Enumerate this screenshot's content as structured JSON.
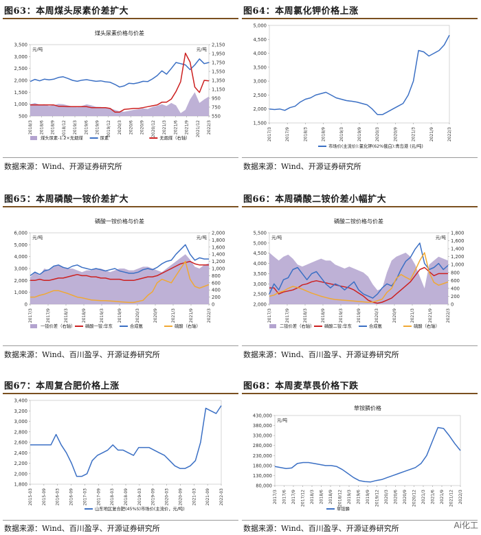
{
  "panels": [
    {
      "figure_title": "图63：本周煤头尿素价差扩大",
      "source": "数据来源：Wind、开源证券研究所",
      "chart_data": {
        "type": "line",
        "title": "煤头尿素价格与价差",
        "left_unit": "元/吨",
        "right_unit": "元/吨",
        "ylim": [
          500,
          3500
        ],
        "y_ticks": [
          500,
          1000,
          1500,
          2000,
          2500,
          3000,
          3500
        ],
        "y_tick_labels": [
          "500",
          "1,000",
          "1,500",
          "2,000",
          "2,500",
          "3,000",
          "3,500"
        ],
        "y2lim": [
          550,
          2150
        ],
        "y2_ticks": [
          550,
          750,
          950,
          1150,
          1350,
          1550,
          1750,
          1950,
          2150
        ],
        "x_tick_labels": [
          "2018/3",
          "2018/6",
          "2018/9",
          "2018/12",
          "2019/3",
          "2019/6",
          "2019/9",
          "2019/12",
          "2020/3",
          "2020/6",
          "2020/9",
          "2020/12",
          "2021/3",
          "2021/6",
          "2021/9",
          "2021/12",
          "2022/3"
        ],
        "series": [
          {
            "name": "煤头尿素-1.2×无烟煤",
            "type": "area",
            "axis": "left",
            "color": "#b3a3cf",
            "values": [
              1000,
              1050,
              980,
              1000,
              920,
              960,
              1010,
              1000,
              950,
              900,
              870,
              930,
              990,
              950,
              890,
              880,
              850,
              830,
              760,
              700,
              680,
              720,
              760,
              780,
              820,
              800,
              880,
              930,
              1000,
              920,
              1050,
              950,
              620,
              760,
              1200,
              1500,
              1050,
              1200,
              1320
            ]
          },
          {
            "name": "尿素",
            "type": "line",
            "axis": "left",
            "color": "#3a6fc4",
            "values": [
              1950,
              2040,
              1980,
              2050,
              2020,
              2050,
              2120,
              2150,
              2080,
              2000,
              1960,
              2010,
              2030,
              1990,
              1960,
              1980,
              1940,
              1920,
              1830,
              1720,
              1770,
              1880,
              1860,
              1900,
              1960,
              1950,
              2060,
              2200,
              2400,
              2260,
              2500,
              2750,
              2700,
              2650,
              2450,
              2650,
              2900,
              2700,
              2750
            ]
          },
          {
            "name": "无烟煤（右轴）",
            "type": "line",
            "axis": "right",
            "color": "#cc1f1f",
            "values": [
              800,
              800,
              800,
              800,
              800,
              800,
              770,
              770,
              760,
              760,
              760,
              760,
              760,
              740,
              740,
              740,
              740,
              720,
              640,
              640,
              700,
              710,
              720,
              720,
              740,
              760,
              780,
              800,
              860,
              860,
              930,
              1100,
              1320,
              1960,
              1760,
              1200,
              1080,
              1350,
              1340
            ]
          }
        ]
      }
    },
    {
      "figure_title": "图64：本周氯化钾价格上涨",
      "source": "数据来源：Wind、开源证券研究所",
      "chart_data": {
        "type": "line",
        "ylim": [
          1500,
          5000
        ],
        "y_ticks": [
          1500,
          2000,
          2500,
          3000,
          3500,
          4000,
          4500,
          5000
        ],
        "y_tick_labels": [
          "1,500",
          "2,000",
          "2,500",
          "3,000",
          "3,500",
          "4,000",
          "4,500",
          "5,000"
        ],
        "x_tick_labels": [
          "2017/3",
          "2017/9",
          "2018/3",
          "2018/9",
          "2019/3",
          "2019/9",
          "2020/3",
          "2020/9",
          "2021/3",
          "2021/9",
          "2022/3"
        ],
        "series": [
          {
            "name": "市场价(主流价):氯化钾(62%俄白):青岛港 (元/吨)",
            "type": "line",
            "axis": "left",
            "color": "#3a6fc4",
            "values": [
              2000,
              1980,
              2000,
              1950,
              2050,
              2100,
              2250,
              2350,
              2400,
              2500,
              2550,
              2600,
              2500,
              2400,
              2350,
              2300,
              2280,
              2250,
              2200,
              2150,
              2000,
              1800,
              1800,
              1900,
              2000,
              2100,
              2200,
              2500,
              3000,
              4100,
              4050,
              3900,
              4000,
              4100,
              4300,
              4650
            ]
          }
        ]
      }
    },
    {
      "figure_title": "图65：本周磷酸一铵价差扩大",
      "source": "数据来源：Wind、百川盈孚、开源证券研究所",
      "chart_data": {
        "type": "line",
        "title": "磷酸一铵价格与价差",
        "left_unit": "元/吨",
        "right_unit": "元/吨",
        "ylim": [
          0,
          6000
        ],
        "y_ticks": [
          0,
          1000,
          2000,
          3000,
          4000,
          5000,
          6000
        ],
        "y_tick_labels": [
          "0",
          "1,000",
          "2,000",
          "3,000",
          "4,000",
          "5,000",
          "6,000"
        ],
        "y2lim": [
          0,
          2000
        ],
        "y2_ticks": [
          0,
          200,
          400,
          600,
          800,
          1000,
          1200,
          1400,
          1600,
          1800,
          2000
        ],
        "x_tick_labels": [
          "2017/3",
          "2017/9",
          "2018/3",
          "2018/9",
          "2019/3",
          "2019/9",
          "2020/3",
          "2020/9",
          "2021/3",
          "2021/9",
          "2022/3"
        ],
        "series": [
          {
            "name": "一铵价差（右轴）",
            "type": "area",
            "axis": "right",
            "color": "#b3a3cf",
            "values": [
              750,
              900,
              800,
              1000,
              950,
              1050,
              1100,
              1050,
              1000,
              1000,
              950,
              900,
              950,
              950,
              1000,
              1000,
              950,
              900,
              950,
              1000,
              1000,
              950,
              950,
              1000,
              1050,
              1050,
              1000,
              950,
              900,
              1000,
              1100,
              1200,
              1300,
              1400,
              1250,
              1050,
              1000,
              1100,
              1150
            ]
          },
          {
            "name": "磷酸一铵:华东",
            "type": "line",
            "axis": "left",
            "color": "#cc1f1f",
            "values": [
              2000,
              2000,
              2100,
              2000,
              2000,
              2100,
              2200,
              2200,
              2300,
              2400,
              2500,
              2400,
              2400,
              2300,
              2300,
              2200,
              2200,
              2100,
              2100,
              2100,
              2000,
              2000,
              2000,
              2100,
              2200,
              2300,
              2300,
              2400,
              2600,
              2800,
              3000,
              3200,
              3400,
              3500,
              3600,
              3400,
              3300,
              3300,
              3300
            ]
          },
          {
            "name": "合成氨",
            "type": "line",
            "axis": "left",
            "color": "#3a6fc4",
            "values": [
              2400,
              2700,
              2500,
              2800,
              2900,
              3200,
              3300,
              3100,
              3000,
              3200,
              3300,
              3100,
              3000,
              2900,
              3000,
              2900,
              2800,
              2900,
              3000,
              2800,
              2700,
              2600,
              2600,
              2700,
              2900,
              3000,
              2900,
              3100,
              3400,
              3600,
              3700,
              4200,
              4600,
              5000,
              4200,
              3700,
              3900,
              3800,
              3800
            ]
          },
          {
            "name": "硫酸（右轴）",
            "type": "line",
            "axis": "right",
            "color": "#f0a833",
            "values": [
              200,
              200,
              250,
              280,
              330,
              380,
              380,
              340,
              300,
              250,
              200,
              180,
              150,
              120,
              110,
              100,
              100,
              90,
              80,
              70,
              60,
              50,
              50,
              80,
              110,
              250,
              350,
              600,
              700,
              650,
              600,
              800,
              1000,
              1200,
              700,
              500,
              450,
              500,
              550
            ]
          }
        ]
      }
    },
    {
      "figure_title": "图66：本周磷酸二铵价差小幅扩大",
      "source": "数据来源：Wind、百川盈孚、开源证券研究所",
      "chart_data": {
        "type": "line",
        "title": "磷酸二铵价格与价差",
        "left_unit": "元/吨",
        "right_unit": "元/吨",
        "ylim": [
          2000,
          5500
        ],
        "y_ticks": [
          2000,
          2500,
          3000,
          3500,
          4000,
          4500,
          5000,
          5500
        ],
        "y_tick_labels": [
          "2,000",
          "2,500",
          "3,000",
          "3,500",
          "4,000",
          "4,500",
          "5,000",
          "5,500"
        ],
        "y2lim": [
          0,
          1800
        ],
        "y2_ticks": [
          0,
          200,
          400,
          600,
          800,
          1000,
          1200,
          1400,
          1600,
          1800
        ],
        "x_tick_labels": [
          "2017/3",
          "2017/9",
          "2018/3",
          "2018/9",
          "2019/3",
          "2019/9",
          "2020/3",
          "2020/9",
          "2021/3",
          "2021/9",
          "2022/3"
        ],
        "series": [
          {
            "name": "二铵价差（右轴）",
            "type": "area",
            "axis": "right",
            "color": "#b3a3cf",
            "values": [
              1300,
              1200,
              1100,
              1200,
              1250,
              1150,
              1000,
              950,
              1000,
              1050,
              1100,
              1150,
              1100,
              1100,
              1000,
              950,
              900,
              950,
              900,
              850,
              800,
              700,
              500,
              350,
              400,
              800,
              1100,
              1200,
              1250,
              1300,
              1200,
              1000,
              700,
              400,
              1000,
              1100,
              1200,
              1150,
              1100
            ]
          },
          {
            "name": "磷酸二铵:华东",
            "type": "line",
            "axis": "left",
            "color": "#cc1f1f",
            "values": [
              2800,
              2800,
              2500,
              2600,
              2650,
              2700,
              2800,
              2950,
              3000,
              3100,
              3150,
              3100,
              3050,
              3000,
              2950,
              2900,
              2850,
              2800,
              2700,
              2550,
              2400,
              2200,
              2100,
              2050,
              2100,
              2200,
              2300,
              2500,
              2700,
              2900,
              3100,
              3400,
              3700,
              3800,
              3600,
              3400,
              3500,
              3500,
              3500
            ]
          },
          {
            "name": "合成氨",
            "type": "line",
            "axis": "left",
            "color": "#3a6fc4",
            "values": [
              2500,
              3000,
              2700,
              3200,
              3300,
              3700,
              3800,
              3500,
              3200,
              3500,
              3600,
              3300,
              3000,
              2800,
              3000,
              2900,
              2700,
              2900,
              3100,
              2700,
              2500,
              2400,
              2300,
              2500,
              2800,
              3000,
              2900,
              3200,
              3700,
              4100,
              4300,
              4700,
              5000,
              4000,
              3700,
              3800,
              4000,
              3700,
              3900
            ]
          },
          {
            "name": "硫酸（右轴）",
            "type": "line",
            "axis": "right",
            "color": "#f0a833",
            "values": [
              200,
              230,
              300,
              330,
              400,
              450,
              420,
              380,
              330,
              280,
              240,
              200,
              170,
              140,
              120,
              110,
              100,
              90,
              80,
              70,
              60,
              50,
              55,
              90,
              130,
              300,
              400,
              650,
              750,
              680,
              620,
              850,
              1100,
              1300,
              800,
              550,
              480,
              520,
              560
            ]
          }
        ]
      }
    },
    {
      "figure_title": "图67：本周复合肥价格上涨",
      "source": "数据来源：Wind、百川盈孚、开源证券研究所",
      "chart_data": {
        "type": "line",
        "ylim": [
          1800,
          3400
        ],
        "y_ticks": [
          1800,
          2000,
          2200,
          2400,
          2600,
          2800,
          3000,
          3200,
          3400
        ],
        "y_tick_labels": [
          "1,800",
          "2,000",
          "2,200",
          "2,400",
          "2,600",
          "2,800",
          "3,000",
          "3,200",
          "3,400"
        ],
        "x_tick_labels": [
          "2015-03",
          "2015-09",
          "2016-03",
          "2016-09",
          "2017-03",
          "2017-09",
          "2018-03",
          "2018-09",
          "2019-03",
          "2019-09",
          "2020-03",
          "2020-09",
          "2021-03",
          "2021-09",
          "2022-03"
        ],
        "series": [
          {
            "name": "山东地区复合肥(45%S)市场价(主流价，元/吨)",
            "type": "line",
            "axis": "left",
            "color": "#3a6fc4",
            "values": [
              2550,
              2550,
              2550,
              2550,
              2550,
              2750,
              2550,
              2400,
              2200,
              1950,
              1950,
              2000,
              2250,
              2350,
              2400,
              2450,
              2550,
              2450,
              2450,
              2400,
              2350,
              2500,
              2500,
              2500,
              2450,
              2400,
              2350,
              2250,
              2150,
              2100,
              2100,
              2150,
              2250,
              2600,
              3250,
              3200,
              3150,
              3300
            ]
          }
        ]
      }
    },
    {
      "figure_title": "图68：本周麦草畏价格下跌",
      "source": "数据来源：Wind、百川盈孚、开源证券研究所",
      "chart_data": {
        "type": "line",
        "title": "草铵膦价格",
        "left_unit": "元/吨",
        "ylim": [
          80000,
          430000
        ],
        "y_ticks": [
          80000,
          130000,
          180000,
          230000,
          280000,
          330000,
          380000,
          430000
        ],
        "y_tick_labels": [
          "80,000",
          "130,000",
          "180,000",
          "230,000",
          "280,000",
          "330,000",
          "380,000",
          "430,000"
        ],
        "x_tick_labels": [
          "2017/3",
          "2017/6",
          "2017/9",
          "2017/12",
          "2018/3",
          "2018/6",
          "2018/9",
          "2018/12",
          "2019/3",
          "2019/6",
          "2019/9",
          "2019/12",
          "2020/3",
          "2020/6",
          "2020/9",
          "2020/12",
          "2021/3",
          "2021/6",
          "2021/9",
          "2021/12",
          "2022/3"
        ],
        "series": [
          {
            "name": "草铵膦",
            "type": "line",
            "axis": "left",
            "color": "#3a6fc4",
            "values": [
              175000,
              170000,
              165000,
              168000,
              190000,
              195000,
              195000,
              190000,
              185000,
              180000,
              180000,
              175000,
              160000,
              140000,
              120000,
              105000,
              100000,
              98000,
              105000,
              110000,
              120000,
              130000,
              140000,
              150000,
              160000,
              170000,
              190000,
              230000,
              300000,
              370000,
              365000,
              330000,
              290000,
              255000
            ]
          }
        ]
      }
    }
  ],
  "watermark": "Ai化工"
}
